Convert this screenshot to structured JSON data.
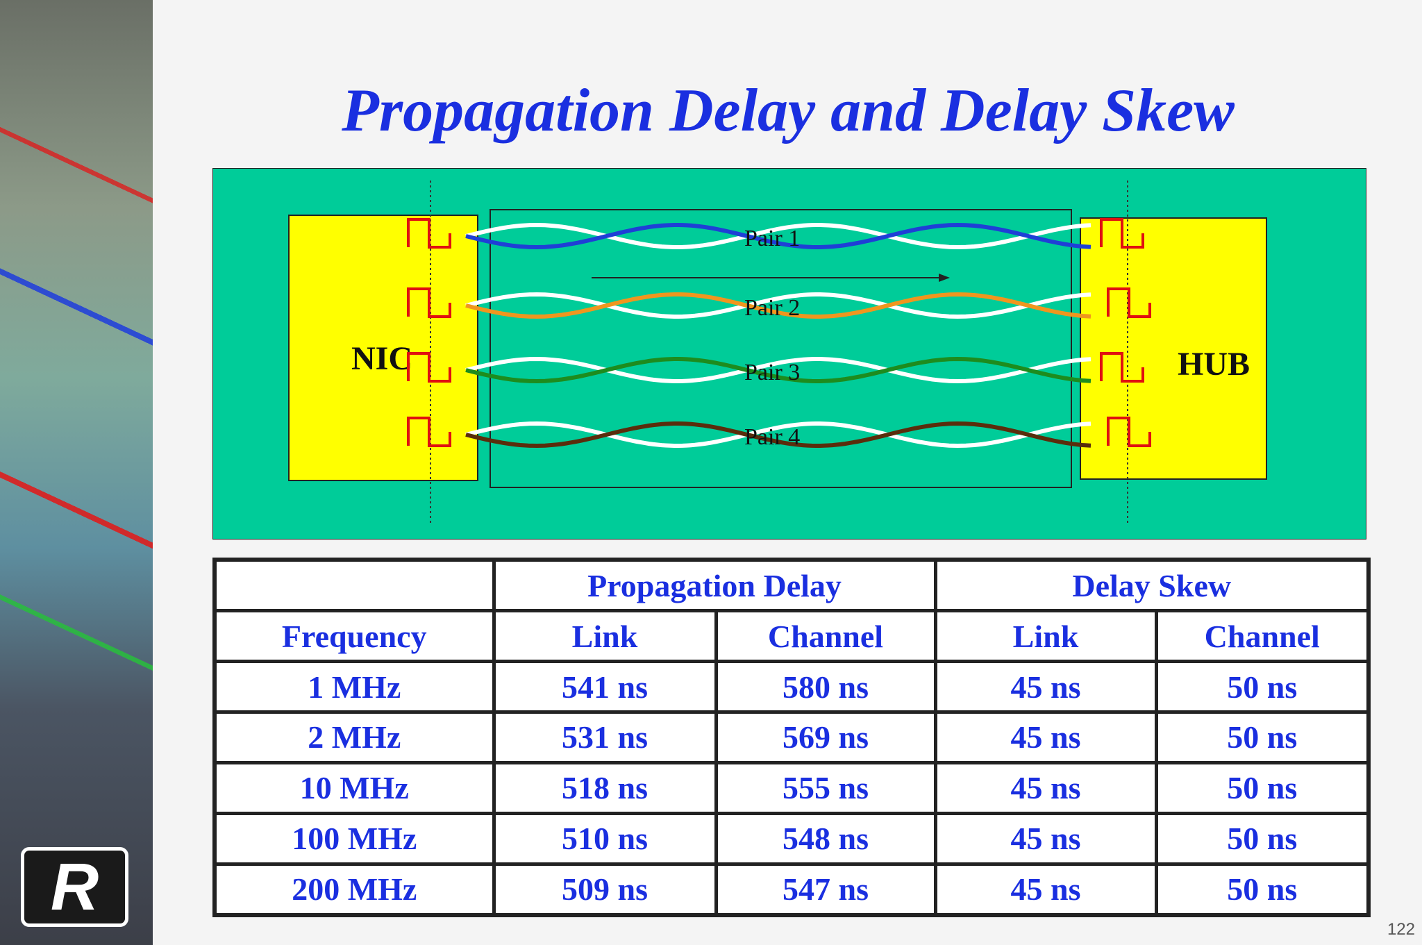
{
  "title": "Propagation Delay and Delay Skew",
  "diagram": {
    "left_device": "NIC",
    "right_device": "HUB",
    "pairs": [
      {
        "label": "Pair 1",
        "color": "#1f3fd6"
      },
      {
        "label": "Pair 2",
        "color": "#f0961e"
      },
      {
        "label": "Pair 3",
        "color": "#1e8c1e"
      },
      {
        "label": "Pair 4",
        "color": "#5a2d0c"
      }
    ],
    "colors": {
      "background": "#00cc99",
      "device": "#ffff00",
      "signal": "#e01010"
    }
  },
  "table": {
    "group_headers": [
      "Propagation Delay",
      "Delay Skew"
    ],
    "col_headers": [
      "Frequency",
      "Link",
      "Channel",
      "Link",
      "Channel"
    ],
    "rows": [
      [
        "1 MHz",
        "541 ns",
        "580 ns",
        "45 ns",
        "50 ns"
      ],
      [
        "2 MHz",
        "531 ns",
        "569 ns",
        "45 ns",
        "50 ns"
      ],
      [
        "10 MHz",
        "518 ns",
        "555 ns",
        "45 ns",
        "50 ns"
      ],
      [
        "100 MHz",
        "510 ns",
        "548 ns",
        "45 ns",
        "50 ns"
      ],
      [
        "200 MHz",
        "509 ns",
        "547 ns",
        "45 ns",
        "50 ns"
      ]
    ]
  },
  "page_number": "122"
}
